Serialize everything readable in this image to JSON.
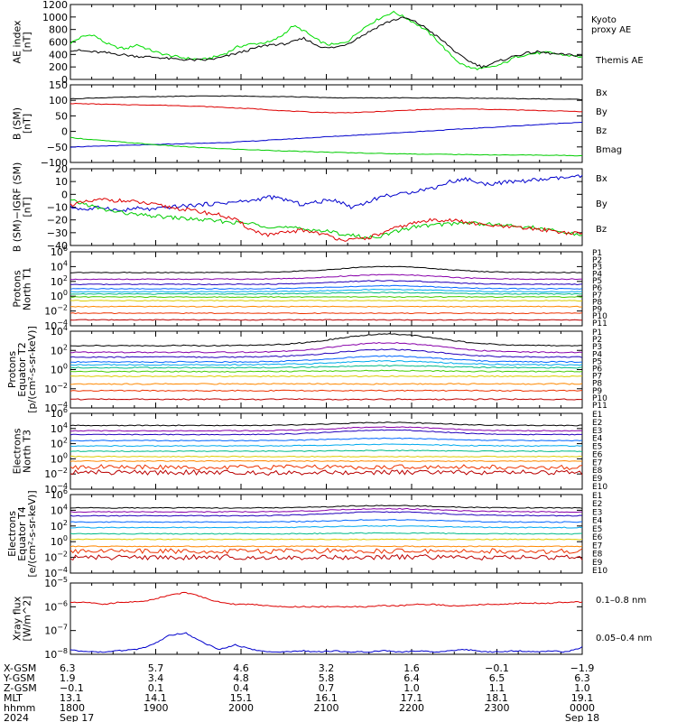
{
  "chart_data": [
    {
      "id": "ae",
      "type": "line",
      "ylabel_lines": [
        "AE index",
        "[nT]"
      ],
      "ylim": [
        0,
        1200
      ],
      "yticks": [
        0,
        200,
        400,
        600,
        800,
        1000,
        1200
      ],
      "series": [
        {
          "name": "Kyoto proxy AE",
          "color": "#00dd00",
          "values": [
            580,
            680,
            720,
            600,
            520,
            490,
            560,
            480,
            420,
            380,
            350,
            330,
            320,
            360,
            420,
            520,
            560,
            580,
            600,
            700,
            860,
            780,
            650,
            560,
            560,
            620,
            780,
            900,
            1000,
            1080,
            1000,
            900,
            780,
            620,
            420,
            260,
            180,
            170,
            200,
            260,
            360,
            400,
            420,
            430,
            400,
            380,
            360
          ]
        },
        {
          "name": "Themis AE",
          "color": "#000000",
          "values": [
            470,
            460,
            440,
            430,
            410,
            390,
            370,
            360,
            350,
            330,
            320,
            310,
            310,
            330,
            370,
            420,
            470,
            520,
            560,
            560,
            600,
            660,
            560,
            500,
            520,
            580,
            680,
            780,
            880,
            950,
            990,
            920,
            820,
            680,
            540,
            380,
            280,
            200,
            260,
            320,
            380,
            420,
            440,
            420,
            400,
            390,
            380
          ]
        }
      ],
      "right_labels": [
        {
          "lines": [
            "Kyoto",
            "proxy AE"
          ],
          "color": "#00dd00"
        },
        {
          "lines": [
            "Themis AE"
          ],
          "color": "#000000"
        }
      ]
    },
    {
      "id": "bsm",
      "type": "line",
      "ylabel_lines": [
        "B (SM)",
        "[nT]"
      ],
      "ylim": [
        -100,
        150
      ],
      "yticks": [
        -100,
        -50,
        0,
        50,
        100,
        150
      ],
      "series": [
        {
          "name": "Bx",
          "color": "#0000cc",
          "values": [
            -50,
            -48,
            -45,
            -43,
            -40,
            -38,
            -35,
            -30,
            -25,
            -20,
            -15,
            -10,
            -5,
            0,
            5,
            10,
            15,
            20,
            25,
            30
          ]
        },
        {
          "name": "By",
          "color": "#00cc00",
          "values": [
            -20,
            -28,
            -35,
            -42,
            -48,
            -53,
            -57,
            -60,
            -63,
            -66,
            -68,
            -70,
            -72,
            -73,
            -74,
            -75,
            -76,
            -76,
            -77,
            -78
          ]
        },
        {
          "name": "Bz",
          "color": "#dd0000",
          "values": [
            90,
            88,
            86,
            85,
            83,
            80,
            76,
            72,
            66,
            62,
            60,
            62,
            66,
            70,
            72,
            72,
            70,
            68,
            66,
            64
          ]
        },
        {
          "name": "Bmag",
          "color": "#000000",
          "values": [
            105,
            108,
            110,
            112,
            113,
            114,
            114,
            113,
            112,
            110,
            108,
            108,
            108,
            108,
            108,
            107,
            106,
            105,
            104,
            103
          ]
        }
      ]
    },
    {
      "id": "bres",
      "type": "line",
      "ylabel_lines": [
        "B (SM)−IGRF (SM)",
        "[nT]"
      ],
      "ylim": [
        -40,
        20
      ],
      "yticks": [
        -40,
        -30,
        -20,
        -10,
        0,
        10,
        20
      ],
      "series": [
        {
          "name": "Bx",
          "color": "#0000cc",
          "values": [
            -10,
            -12,
            -10,
            -13,
            -11,
            -12,
            -10,
            -9,
            -8,
            -7,
            -6,
            -5,
            -2,
            -4,
            -8,
            -6,
            -4,
            -10,
            -6,
            -1,
            0,
            3,
            5,
            10,
            12,
            8,
            9,
            10,
            11,
            12,
            13,
            14
          ]
        },
        {
          "name": "By",
          "color": "#00cc00",
          "values": [
            -5,
            -8,
            -12,
            -14,
            -16,
            -17,
            -18,
            -19,
            -20,
            -21,
            -22,
            -23,
            -25,
            -26,
            -27,
            -28,
            -30,
            -32,
            -34,
            -32,
            -28,
            -25,
            -24,
            -23,
            -22,
            -23,
            -24,
            -25,
            -26,
            -28,
            -30,
            -32
          ]
        },
        {
          "name": "Bz",
          "color": "#dd0000",
          "values": [
            -8,
            -6,
            -4,
            -5,
            -6,
            -8,
            -10,
            -12,
            -14,
            -16,
            -20,
            -28,
            -32,
            -30,
            -28,
            -30,
            -34,
            -36,
            -34,
            -30,
            -25,
            -22,
            -20,
            -20,
            -22,
            -24,
            -25,
            -26,
            -27,
            -28,
            -30,
            -31
          ]
        }
      ]
    },
    {
      "id": "pnorth",
      "type": "line",
      "log": true,
      "ylabel_lines": [
        "Protons",
        "North T1"
      ],
      "ylim_exp": [
        -4,
        6
      ],
      "ytick_exps": [
        -4,
        -2,
        0,
        2,
        4,
        6
      ],
      "channels": [
        "P1",
        "P2",
        "P3",
        "P4",
        "P5",
        "P6",
        "P7",
        "P8",
        "P9",
        "P10",
        "P11"
      ],
      "colors": [
        "#000000",
        "#8800aa",
        "#2200bb",
        "#0066ff",
        "#00aaee",
        "#00bb88",
        "#44cc00",
        "#ddcc00",
        "#ff8800",
        "#ee3300",
        "#bb0000"
      ],
      "levels": [
        3.2,
        2.3,
        1.6,
        1.0,
        0.6,
        0.3,
        -0.1,
        -0.6,
        -1.4,
        -2.3,
        -3.2
      ],
      "bump": [
        0.8,
        0.6,
        0.5,
        0.4,
        0.3,
        0.2,
        0,
        0,
        0,
        0,
        0
      ]
    },
    {
      "id": "pequator",
      "type": "line",
      "log": true,
      "ylabel_lines": [
        "Protons",
        "Equator T2",
        "[p/(cm²-s-sr-keV)]"
      ],
      "ylim_exp": [
        -4,
        4
      ],
      "ytick_exps": [
        -4,
        -2,
        0,
        2,
        4
      ],
      "channels": [
        "P1",
        "P2",
        "P3",
        "P4",
        "P5",
        "P6",
        "P7",
        "P8",
        "P9",
        "P10",
        "P11"
      ],
      "colors": [
        "#000000",
        "#8800aa",
        "#2200bb",
        "#0066ff",
        "#00aaee",
        "#00bb88",
        "#44cc00",
        "#ddcc00",
        "#ff8800",
        "#ee3300",
        "#bb0000"
      ],
      "levels": [
        2.5,
        1.8,
        1.3,
        0.8,
        0.5,
        0.2,
        -0.2,
        -0.7,
        -1.5,
        -2.2,
        -3.1
      ],
      "bump": [
        1.2,
        1.0,
        0.8,
        0.6,
        0.4,
        0.2,
        0.1,
        0,
        0,
        0,
        0
      ]
    },
    {
      "id": "enorth",
      "type": "line",
      "log": true,
      "ylabel_lines": [
        "Electrons",
        "North T3"
      ],
      "ylim_exp": [
        -4,
        6
      ],
      "ytick_exps": [
        -4,
        -2,
        0,
        2,
        4,
        6
      ],
      "channels": [
        "E1",
        "E2",
        "E3",
        "E4",
        "E5",
        "E6",
        "E7",
        "E8",
        "E9",
        "E10"
      ],
      "colors": [
        "#000000",
        "#8800aa",
        "#2200bb",
        "#0066ff",
        "#00aaee",
        "#00bb88",
        "#ddcc00",
        "#ff8800",
        "#ee3300",
        "#bb0000"
      ],
      "levels": [
        4.4,
        3.7,
        3.2,
        2.4,
        1.7,
        1.0,
        0.3,
        -0.3,
        -1.1,
        -1.8
      ],
      "bump": [
        0.4,
        0.5,
        0.6,
        0.3,
        0.2,
        0.1,
        0,
        0,
        0,
        0
      ]
    },
    {
      "id": "eequator",
      "type": "line",
      "log": true,
      "ylabel_lines": [
        "Electrons",
        "Equator T4",
        "[e/(cm²-s-sr-keV)]"
      ],
      "ylim_exp": [
        -4,
        6
      ],
      "ytick_exps": [
        -4,
        -2,
        0,
        2,
        4,
        6
      ],
      "channels": [
        "E1",
        "E2",
        "E3",
        "E4",
        "E5",
        "E6",
        "E7",
        "E8",
        "E9",
        "E10"
      ],
      "colors": [
        "#000000",
        "#8800aa",
        "#2200bb",
        "#0066ff",
        "#00aaee",
        "#00bb88",
        "#ddcc00",
        "#ff8800",
        "#ee3300",
        "#bb0000"
      ],
      "levels": [
        4.3,
        3.8,
        3.3,
        2.5,
        1.8,
        1.0,
        0.3,
        -0.6,
        -1.2,
        -2.0
      ],
      "bump": [
        0.3,
        0.4,
        0.5,
        0.3,
        0.2,
        0.1,
        0,
        0,
        0,
        0
      ]
    },
    {
      "id": "xray",
      "type": "line",
      "log": true,
      "ylabel_lines": [
        "Xray flux",
        "[W/m^2]"
      ],
      "ylim_exp": [
        -8,
        -5
      ],
      "ytick_exps": [
        -8,
        -7,
        -6,
        -5
      ],
      "series": [
        {
          "name": "0.1–0.8 nm",
          "color": "#dd0000",
          "values": [
            -5.8,
            -5.8,
            -5.9,
            -5.8,
            -5.8,
            -5.7,
            -5.5,
            -5.4,
            -5.6,
            -5.8,
            -5.9,
            -5.9,
            -5.95,
            -6.0,
            -6.0,
            -6.0,
            -6.0,
            -6.0,
            -6.0,
            -5.95,
            -5.95,
            -5.9,
            -5.9,
            -5.95,
            -5.95,
            -5.9,
            -5.9,
            -5.85,
            -5.85,
            -5.85,
            -5.8,
            -5.8
          ]
        },
        {
          "name": "0.05–0.4 nm",
          "color": "#0000cc",
          "values": [
            -7.8,
            -7.9,
            -7.9,
            -7.85,
            -7.8,
            -7.6,
            -7.2,
            -7.1,
            -7.5,
            -7.8,
            -7.6,
            -7.8,
            -7.9,
            -7.9,
            -7.85,
            -7.9,
            -7.85,
            -7.9,
            -7.9,
            -7.85,
            -7.9,
            -7.85,
            -7.9,
            -7.85,
            -7.8,
            -7.9,
            -7.9,
            -7.85,
            -7.9,
            -7.85,
            -7.9,
            -7.7
          ]
        }
      ]
    }
  ],
  "ephemeris": {
    "row_labels": [
      "X-GSM",
      "Y-GSM",
      "Z-GSM",
      "MLT",
      "hhmm",
      "2024"
    ],
    "columns": [
      [
        "6.3",
        "1.9",
        "−0.1",
        "13.1",
        "1800",
        "Sep 17"
      ],
      [
        "5.7",
        "3.4",
        "0.1",
        "14.1",
        "1900",
        ""
      ],
      [
        "4.6",
        "4.8",
        "0.4",
        "15.1",
        "2000",
        ""
      ],
      [
        "3.2",
        "5.8",
        "0.7",
        "16.1",
        "2100",
        ""
      ],
      [
        "1.6",
        "6.4",
        "1.0",
        "17.1",
        "2200",
        ""
      ],
      [
        "−0.1",
        "6.5",
        "1.1",
        "18.1",
        "2300",
        ""
      ],
      [
        "−1.9",
        "6.3",
        "1.0",
        "19.1",
        "0000",
        "Sep 18"
      ]
    ]
  }
}
